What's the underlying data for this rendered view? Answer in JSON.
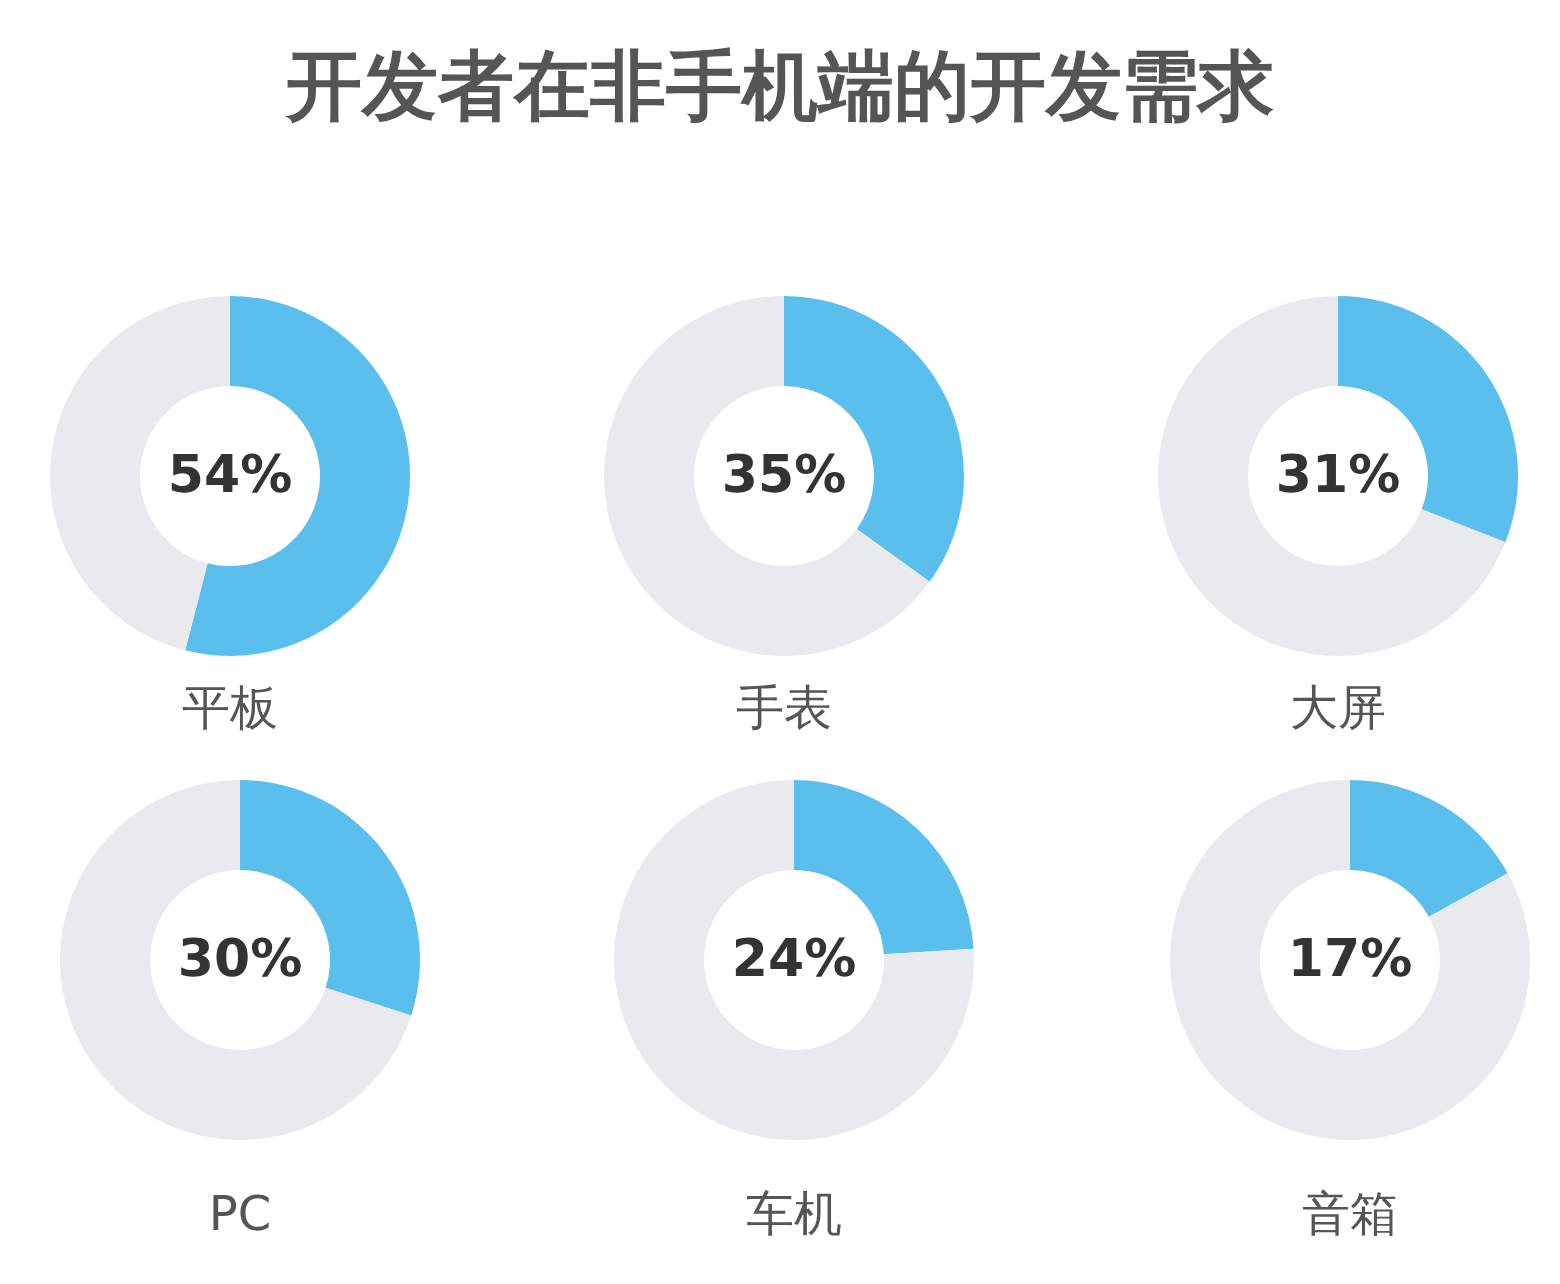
{
  "chart_data": [
    {
      "type": "other",
      "title": "开发者在非手机端的开发需求"
    },
    {
      "type": "donut",
      "title": "平板",
      "categories": [
        null,
        null
      ],
      "values": [
        54,
        46
      ],
      "colors": [
        "#5bbfee",
        "#e9eaee"
      ],
      "value_labels": [
        "54%",
        null
      ]
    },
    {
      "type": "donut",
      "title": "手表",
      "categories": [
        null,
        null
      ],
      "values": [
        35,
        65
      ],
      "colors": [
        "#5bbfee",
        "#e9eaee"
      ],
      "value_labels": [
        "35%",
        null
      ]
    },
    {
      "type": "donut",
      "title": "大屏",
      "categories": [
        null,
        null
      ],
      "values": [
        31,
        69
      ],
      "colors": [
        "#5bbfee",
        "#e9eaee"
      ],
      "value_labels": [
        "31%",
        null
      ]
    },
    {
      "type": "donut",
      "title": "PC",
      "categories": [
        null,
        null
      ],
      "values": [
        30,
        70
      ],
      "colors": [
        "#5bbfee",
        "#e9eaee"
      ],
      "value_labels": [
        "30%",
        null
      ]
    },
    {
      "type": "donut",
      "title": "车机",
      "categories": [
        null,
        null
      ],
      "values": [
        24,
        76
      ],
      "colors": [
        "#5bbfee",
        "#e9eaee"
      ],
      "value_labels": [
        "24%",
        null
      ]
    },
    {
      "type": "donut",
      "title": "音箱",
      "categories": [
        null,
        null
      ],
      "values": [
        17,
        83
      ],
      "colors": [
        "#5bbfee",
        "#e9eaee"
      ],
      "value_labels": [
        "17%",
        null
      ]
    }
  ]
}
